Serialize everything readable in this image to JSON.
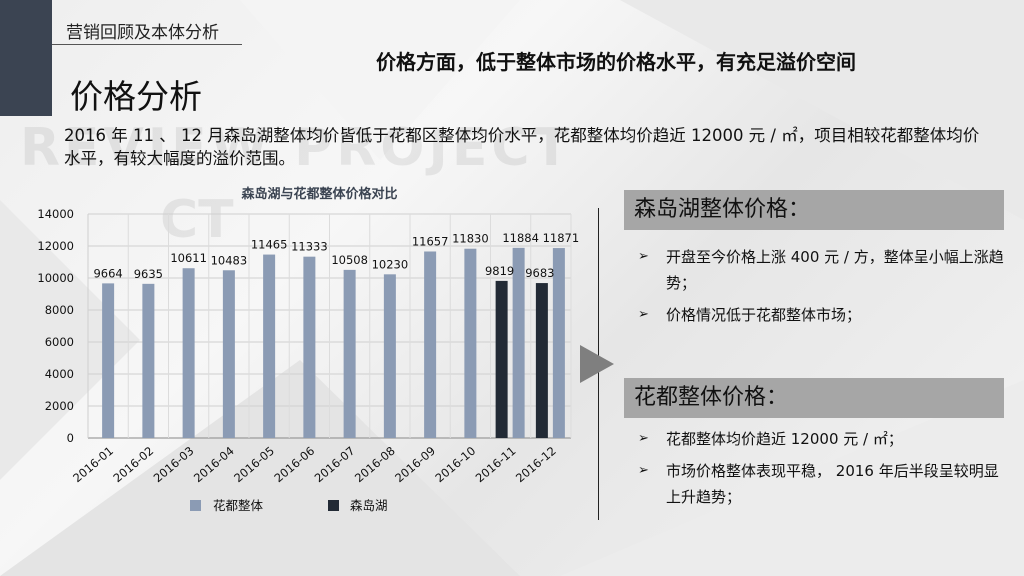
{
  "header": {
    "section_title": "营销回顾及本体分析",
    "headline": "价格方面，低于整体市场的价格水平，有充足溢价空间",
    "page_title": "价格分析",
    "watermark": "REVIEW PROJECT",
    "watermark2": "CT"
  },
  "intro": "2016 年 11 、 12 月森岛湖整体均价皆低于花都区整体均价水平，花都整体均价趋近 12000 元 / ㎡，项目相较花都整体均价水平，有较大幅度的溢价范围。",
  "chart_data": {
    "type": "bar",
    "title": "森岛湖与花都整体价格对比",
    "categories": [
      "2016-01",
      "2016-02",
      "2016-03",
      "2016-04",
      "2016-05",
      "2016-06",
      "2016-07",
      "2016-08",
      "2016-09",
      "2016-10",
      "2016-11",
      "2016-12"
    ],
    "series": [
      {
        "name": "花都整体",
        "color": "#8b9bb4",
        "values": [
          9664,
          9635,
          10611,
          10483,
          11465,
          11333,
          10508,
          10230,
          11657,
          11830,
          11884,
          11871
        ]
      },
      {
        "name": "森岛湖",
        "color": "#222a35",
        "values": [
          null,
          null,
          null,
          null,
          null,
          null,
          null,
          null,
          null,
          null,
          9819,
          9683
        ]
      }
    ],
    "ylim": [
      0,
      14000
    ],
    "yticks": [
      0,
      2000,
      4000,
      6000,
      8000,
      10000,
      12000,
      14000
    ],
    "grid": true,
    "legend": "bottom"
  },
  "panels": [
    {
      "title": "森岛湖整体价格：",
      "bullets": [
        "开盘至今价格上涨 400 元 / 方，整体呈小幅上涨趋势；",
        "价格情况低于花都整体市场；"
      ]
    },
    {
      "title": "花都整体价格：",
      "bullets": [
        "花都整体均价趋近 12000 元 / ㎡；",
        "市场价格整体表现平稳， 2016 年后半段呈较明显上升趋势；"
      ]
    }
  ],
  "bullet_marker": "➢"
}
